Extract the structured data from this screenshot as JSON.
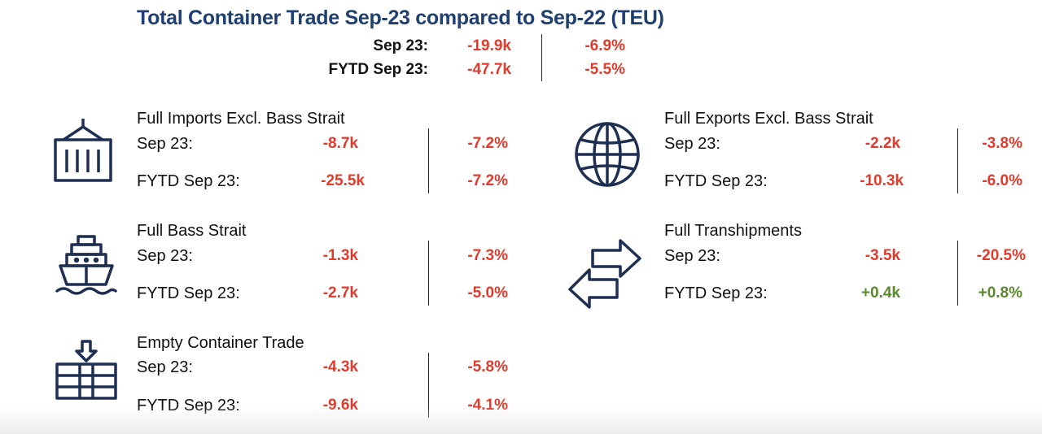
{
  "title": "Total Container Trade Sep-23 compared to Sep-22 (TEU)",
  "summary": {
    "rows": [
      {
        "label": "Sep  23:",
        "value": "-19.9k",
        "pct": "-6.9%"
      },
      {
        "label": "FYTD Sep 23:",
        "value": "-47.7k",
        "pct": "-5.5%"
      }
    ]
  },
  "sections": {
    "full_imports": {
      "icon": "container-crane-icon",
      "title": "Full Imports Excl. Bass Strait",
      "rows": [
        {
          "label": "Sep  23:",
          "value": "-8.7k",
          "pct": "-7.2%"
        },
        {
          "label": "FYTD Sep  23:",
          "value": "-25.5k",
          "pct": "-7.2%"
        }
      ]
    },
    "full_exports": {
      "icon": "globe-icon",
      "title": "Full Exports Excl. Bass Strait",
      "rows": [
        {
          "label": "Sep  23:",
          "value": "-2.2k",
          "pct": "-3.8%"
        },
        {
          "label": "FYTD Sep  23:",
          "value": "-10.3k",
          "pct": "-6.0%"
        }
      ]
    },
    "bass_strait": {
      "icon": "ship-icon",
      "title": "Full Bass Strait",
      "rows": [
        {
          "label": "Sep  23:",
          "value": "-1.3k",
          "pct": "-7.3%"
        },
        {
          "label": "FYTD Sep  23:",
          "value": "-2.7k",
          "pct": "-5.0%"
        }
      ]
    },
    "transhipments": {
      "icon": "exchange-arrows-icon",
      "title": "Full Transhipments",
      "rows": [
        {
          "label": "Sep  23:",
          "value": "-3.5k",
          "pct": "-20.5%"
        },
        {
          "label": "FYTD Sep  23:",
          "value": "+0.4k",
          "pct": "+0.8%"
        }
      ]
    },
    "empty": {
      "icon": "empty-container-icon",
      "title": "Empty Container Trade",
      "rows": [
        {
          "label": "Sep  23:",
          "value": "-4.3k",
          "pct": "-5.8%"
        },
        {
          "label": "FYTD Sep  23:",
          "value": "-9.6k",
          "pct": "-4.1%"
        }
      ]
    }
  },
  "colors": {
    "title": "#1f3f73",
    "negative": "#e23a2c",
    "positive": "#5a8a2e",
    "icon": "#1f2f52"
  }
}
